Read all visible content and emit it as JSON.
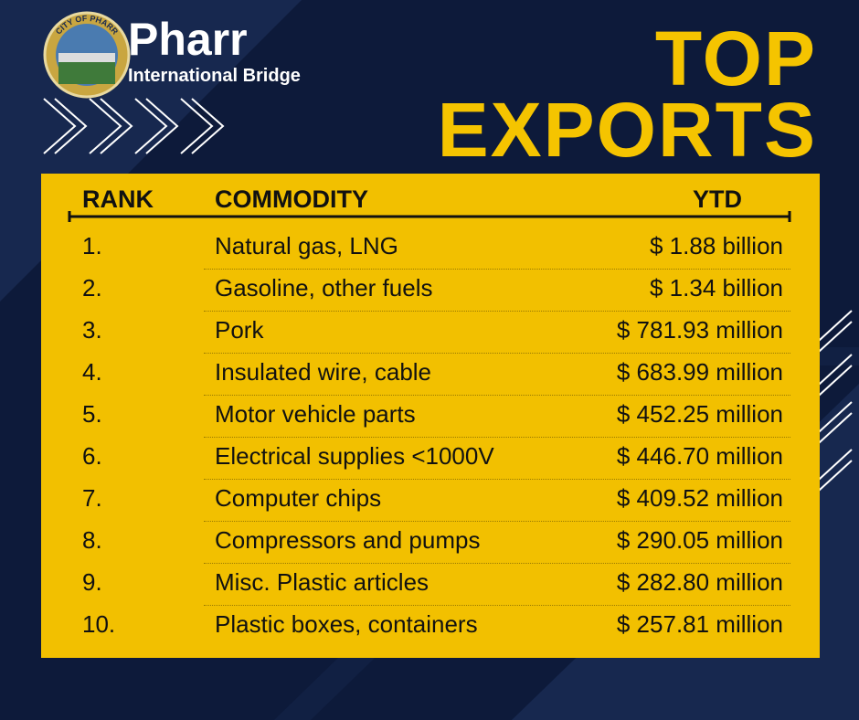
{
  "logo": {
    "seal": "CITY OF PHARR",
    "name": "Pharr",
    "subtitle": "International Bridge"
  },
  "title": {
    "line1": "TOP",
    "line2": "EXPORTS"
  },
  "table": {
    "columns": [
      "RANK",
      "COMMODITY",
      "YTD"
    ],
    "rows": [
      [
        "1.",
        "Natural gas, LNG",
        "$ 1.88 billion"
      ],
      [
        "2.",
        "Gasoline, other fuels",
        "$ 1.34 billion"
      ],
      [
        "3.",
        "Pork",
        "$ 781.93 million"
      ],
      [
        "4.",
        "Insulated wire, cable",
        "$ 683.99 million"
      ],
      [
        "5.",
        "Motor vehicle parts",
        "$ 452.25 million"
      ],
      [
        "6.",
        "Electrical supplies <1000V",
        "$ 446.70 million"
      ],
      [
        "7.",
        "Computer chips",
        "$ 409.52 million"
      ],
      [
        "8.",
        "Compressors and pumps",
        "$ 290.05 million"
      ],
      [
        "9.",
        "Misc. Plastic articles",
        "$ 282.80 million"
      ],
      [
        "10.",
        "Plastic boxes, containers",
        "$ 257.81 million"
      ]
    ]
  }
}
